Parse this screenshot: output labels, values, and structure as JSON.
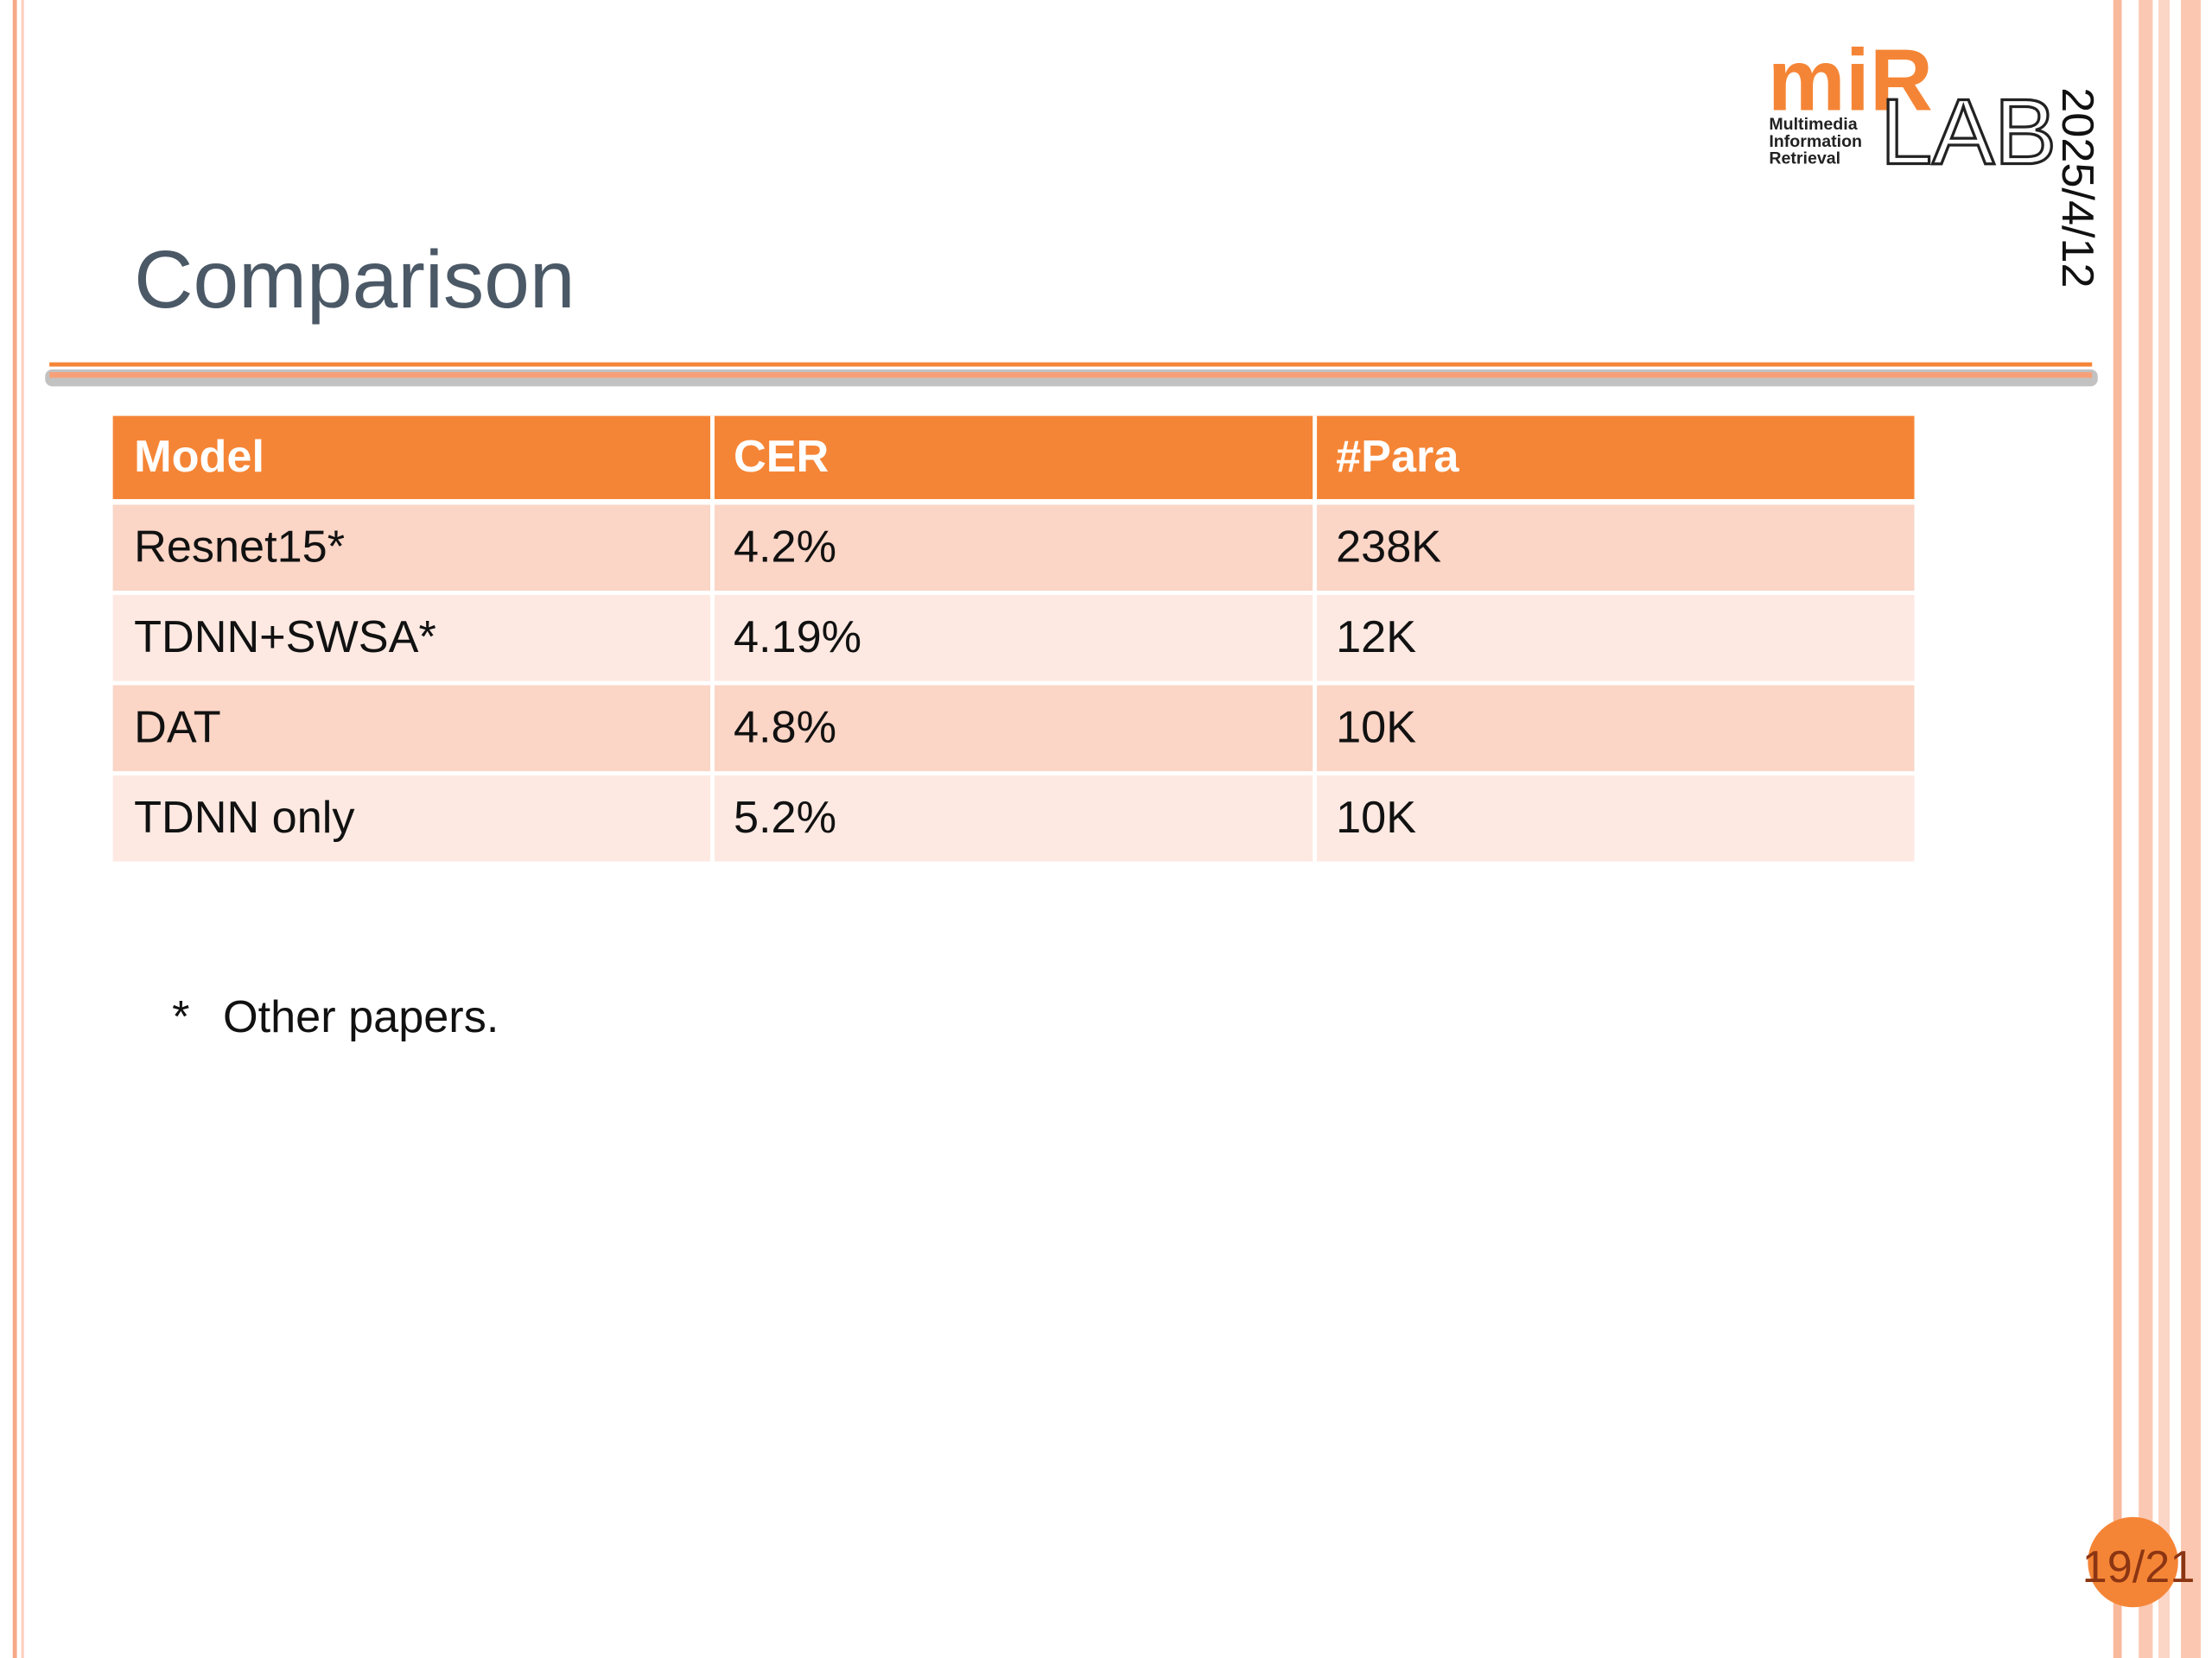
{
  "header": {
    "title": "Comparison",
    "date": "2025/4/12"
  },
  "logo": {
    "mark": "miR",
    "lab": "LAB",
    "lines": [
      "Multimedia",
      "Information",
      "Retrieval"
    ]
  },
  "table": {
    "columns": [
      "Model",
      "CER",
      "#Para"
    ],
    "rows": [
      [
        "Resnet15*",
        "4.2%",
        "238K"
      ],
      [
        "TDNN+SWSA*",
        "4.19%",
        "12K"
      ],
      [
        "DAT",
        "4.8%",
        "10K"
      ],
      [
        "TDNN only",
        "5.2%",
        "10K"
      ]
    ]
  },
  "footnote": {
    "marker": "*",
    "text": "Other papers."
  },
  "page_number": "19/21"
}
